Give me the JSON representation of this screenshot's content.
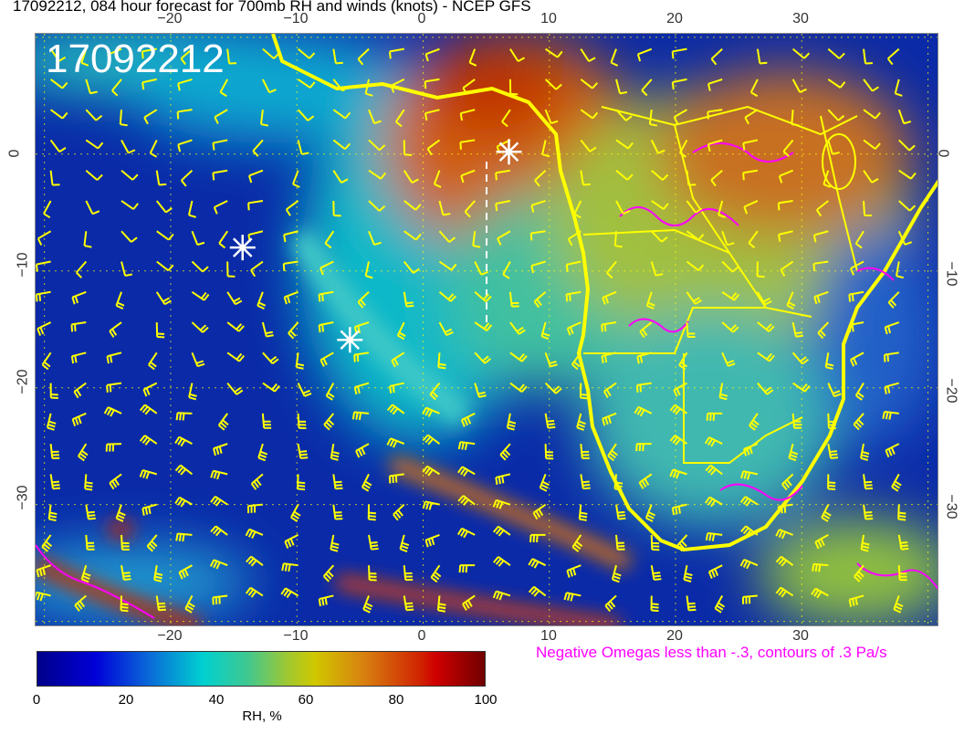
{
  "title": "17092212, 084 hour forecast for 700mb RH and winds (knots) - NCEP GFS",
  "stamp": "17092212",
  "lon_ticks": [
    "−20",
    "−10",
    "0",
    "10",
    "20",
    "30"
  ],
  "lat_ticks": [
    "0",
    "−10",
    "−20",
    "−30"
  ],
  "annotation": "Negative Omegas less than -.3, contours of .3 Pa/s",
  "colorbar": {
    "label": "RH, %",
    "ticks": [
      "0",
      "20",
      "40",
      "60",
      "80",
      "100"
    ],
    "range": [
      0,
      100
    ],
    "colors": [
      "#00008a",
      "#0000d8",
      "#00d0d0",
      "#d0c800",
      "#d00000",
      "#700000"
    ]
  },
  "map": {
    "lon_range": [
      -30.7,
      40.9
    ],
    "lat_range": [
      -40.5,
      10.3
    ],
    "coastline_color": "#ffff00",
    "wind_barb_color": "#ffff00",
    "omega_contour_color": "#ff00ff",
    "markers": [
      {
        "type": "star",
        "lon": -14.3,
        "lat": -8
      },
      {
        "type": "star",
        "lon": -5.8,
        "lat": -15.9
      },
      {
        "type": "star",
        "lon": 6.8,
        "lat": 0.2
      }
    ]
  }
}
